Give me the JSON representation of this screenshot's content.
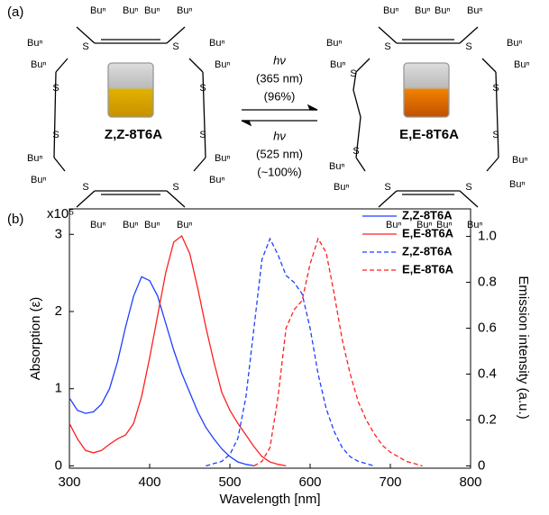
{
  "scheme": {
    "panel": "(a)",
    "substituent": "Buⁿ",
    "heteroatom": "S",
    "forward": {
      "light": "hν",
      "wavelength": "(365 nm)",
      "yield": "(96%)"
    },
    "backward": {
      "light": "hν",
      "wavelength": "(525 nm)",
      "yield": "(~100%)"
    },
    "left_compound": "Z,Z-8T6A",
    "right_compound": "E,E-8T6A"
  },
  "chart_data": {
    "type": "line",
    "panel": "(b)",
    "multiplier": "x10⁵",
    "x_label": "Wavelength [nm]",
    "y_label": "Absorption (ε)",
    "y2_label": "Emission intensity (a.u.)",
    "xlim": [
      300,
      800
    ],
    "xticks": [
      300,
      400,
      500,
      600,
      700,
      800
    ],
    "ylim": [
      -0.03,
      3.33
    ],
    "yticks": [
      0,
      1,
      2,
      3
    ],
    "y2lim": [
      -0.01,
      1.12
    ],
    "y2ticks": [
      0,
      {
        "value": 0.2,
        "label": "0.2"
      },
      {
        "value": 0.4,
        "label": "0.4"
      },
      {
        "value": 0.6,
        "label": "0.6"
      },
      {
        "value": 0.8,
        "label": "0.8"
      },
      {
        "value": 1,
        "label": "1.0"
      }
    ],
    "legend": "upper right",
    "series": [
      {
        "name": "Z,Z-8T6A",
        "color": "#1f3fff",
        "style": "solid",
        "axis": "y",
        "x": [
          300,
          310,
          320,
          330,
          340,
          350,
          360,
          370,
          380,
          390,
          400,
          410,
          420,
          430,
          440,
          450,
          460,
          470,
          480,
          490,
          500,
          510,
          520,
          530
        ],
        "values": [
          0.88,
          0.72,
          0.68,
          0.7,
          0.8,
          1.0,
          1.35,
          1.8,
          2.2,
          2.45,
          2.4,
          2.2,
          1.85,
          1.5,
          1.2,
          0.95,
          0.7,
          0.5,
          0.35,
          0.22,
          0.12,
          0.05,
          0.02,
          0
        ]
      },
      {
        "name": "E,E-8T6A",
        "color": "#ff1f1f",
        "style": "solid",
        "axis": "y",
        "x": [
          300,
          310,
          320,
          330,
          340,
          350,
          360,
          370,
          380,
          390,
          400,
          410,
          420,
          430,
          440,
          450,
          460,
          470,
          480,
          490,
          500,
          510,
          520,
          530,
          540,
          550,
          560,
          570
        ],
        "values": [
          0.55,
          0.35,
          0.2,
          0.17,
          0.2,
          0.28,
          0.35,
          0.4,
          0.55,
          0.9,
          1.4,
          1.95,
          2.5,
          2.9,
          2.98,
          2.75,
          2.3,
          1.8,
          1.35,
          0.95,
          0.72,
          0.55,
          0.4,
          0.25,
          0.12,
          0.05,
          0.02,
          0
        ]
      },
      {
        "name": "Z,Z-8T6A",
        "color": "#1f3fff",
        "style": "dashed",
        "axis": "y2",
        "x": [
          470,
          480,
          490,
          500,
          510,
          520,
          530,
          540,
          550,
          560,
          570,
          580,
          590,
          600,
          610,
          620,
          630,
          640,
          650,
          660,
          670,
          680
        ],
        "values": [
          0,
          0.01,
          0.02,
          0.05,
          0.12,
          0.3,
          0.6,
          0.9,
          0.99,
          0.92,
          0.83,
          0.8,
          0.75,
          0.6,
          0.4,
          0.25,
          0.15,
          0.08,
          0.04,
          0.02,
          0.01,
          0
        ]
      },
      {
        "name": "E,E-8T6A",
        "color": "#ff1f1f",
        "style": "dashed",
        "axis": "y2",
        "x": [
          530,
          540,
          550,
          560,
          570,
          580,
          590,
          600,
          610,
          620,
          630,
          640,
          650,
          660,
          670,
          680,
          690,
          700,
          710,
          720,
          730,
          740
        ],
        "values": [
          0,
          0.02,
          0.08,
          0.3,
          0.6,
          0.68,
          0.72,
          0.88,
          0.99,
          0.93,
          0.75,
          0.55,
          0.4,
          0.28,
          0.2,
          0.14,
          0.09,
          0.06,
          0.04,
          0.02,
          0.01,
          0
        ]
      }
    ]
  }
}
